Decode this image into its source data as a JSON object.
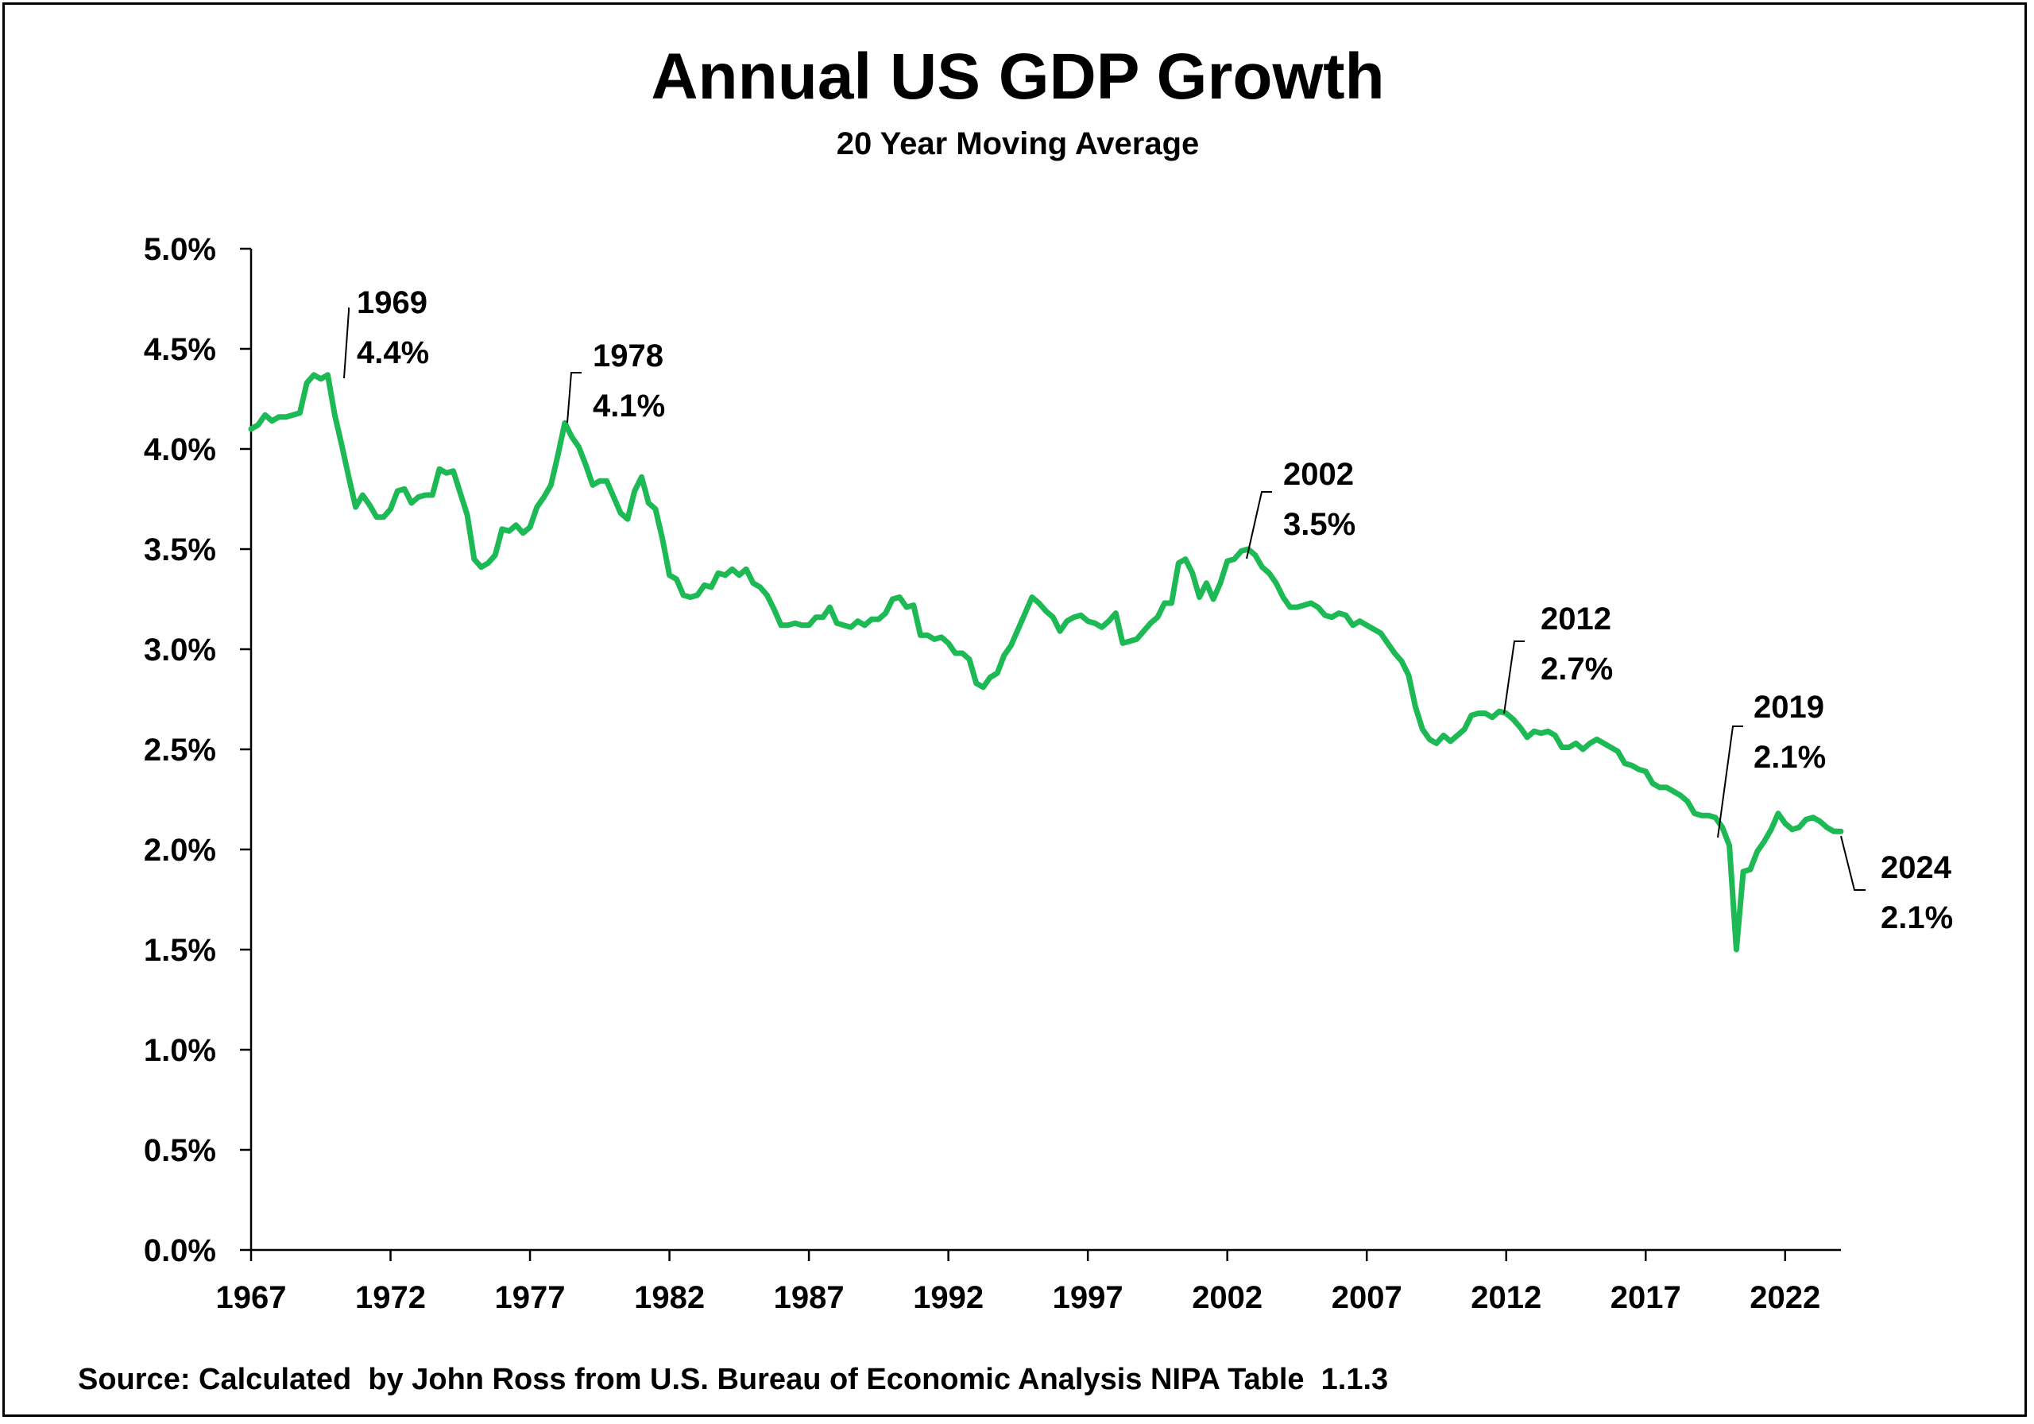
{
  "chart_data": {
    "type": "line",
    "title": "Annual US GDP Growth",
    "subtitle": "20 Year Moving Average",
    "xlabel": "",
    "ylabel": "",
    "x_tick_labels": [
      "1967",
      "1972",
      "1977",
      "1982",
      "1987",
      "1992",
      "1997",
      "2002",
      "2007",
      "2012",
      "2017",
      "2022"
    ],
    "y_tick_labels": [
      "0.0%",
      "0.5%",
      "1.0%",
      "1.5%",
      "2.0%",
      "2.5%",
      "3.0%",
      "3.5%",
      "4.0%",
      "4.5%",
      "5.0%"
    ],
    "xlim": [
      1967,
      2024
    ],
    "ylim": [
      0,
      5
    ],
    "grid": false,
    "legend": "none",
    "line_color": "#1db954",
    "series": [
      {
        "x": [
          1967.0,
          1967.25,
          1967.5,
          1967.75,
          1968.0,
          1968.25,
          1968.5,
          1968.75,
          1969.0,
          1969.25,
          1969.5,
          1969.75,
          1970.0,
          1970.25,
          1970.5,
          1970.75,
          1971.0,
          1971.25,
          1971.5,
          1971.75,
          1972.0,
          1972.25,
          1972.5,
          1972.75,
          1973.0,
          1973.25,
          1973.5,
          1973.75,
          1974.0,
          1974.25,
          1974.5,
          1974.75,
          1975.0,
          1975.25,
          1975.5,
          1975.75,
          1976.0,
          1976.25,
          1976.5,
          1976.75,
          1977.0,
          1977.25,
          1977.5,
          1977.75,
          1978.0,
          1978.25,
          1978.5,
          1978.75,
          1979.0,
          1979.25,
          1979.5,
          1979.75,
          1980.0,
          1980.25,
          1980.5,
          1980.75,
          1981.0,
          1981.25,
          1981.5,
          1981.75,
          1982.0,
          1982.25,
          1982.5,
          1982.75,
          1983.0,
          1983.25,
          1983.5,
          1983.75,
          1984.0,
          1984.25,
          1984.5,
          1984.75,
          1985.0,
          1985.25,
          1985.5,
          1985.75,
          1986.0,
          1986.25,
          1986.5,
          1986.75,
          1987.0,
          1987.25,
          1987.5,
          1987.75,
          1988.0,
          1988.25,
          1988.5,
          1988.75,
          1989.0,
          1989.25,
          1989.5,
          1989.75,
          1990.0,
          1990.25,
          1990.5,
          1990.75,
          1991.0,
          1991.25,
          1991.5,
          1991.75,
          1992.0,
          1992.25,
          1992.5,
          1992.75,
          1993.0,
          1993.25,
          1993.5,
          1993.75,
          1994.0,
          1994.25,
          1994.5,
          1994.75,
          1995.0,
          1995.25,
          1995.5,
          1995.75,
          1996.0,
          1996.25,
          1996.5,
          1996.75,
          1997.0,
          1997.25,
          1997.5,
          1997.75,
          1998.0,
          1998.25,
          1998.5,
          1998.75,
          1999.0,
          1999.25,
          1999.5,
          1999.75,
          2000.0,
          2000.25,
          2000.5,
          2000.75,
          2001.0,
          2001.25,
          2001.5,
          2001.75,
          2002.0,
          2002.25,
          2002.5,
          2002.75,
          2003.0,
          2003.25,
          2003.5,
          2003.75,
          2004.0,
          2004.25,
          2004.5,
          2004.75,
          2005.0,
          2005.25,
          2005.5,
          2005.75,
          2006.0,
          2006.25,
          2006.5,
          2006.75,
          2007.0,
          2007.25,
          2007.5,
          2007.75,
          2008.0,
          2008.25,
          2008.5,
          2008.75,
          2009.0,
          2009.25,
          2009.5,
          2009.75,
          2010.0,
          2010.25,
          2010.5,
          2010.75,
          2011.0,
          2011.25,
          2011.5,
          2011.75,
          2012.0,
          2012.25,
          2012.5,
          2012.75,
          2013.0,
          2013.25,
          2013.5,
          2013.75,
          2014.0,
          2014.25,
          2014.5,
          2014.75,
          2015.0,
          2015.25,
          2015.5,
          2015.75,
          2016.0,
          2016.25,
          2016.5,
          2016.75,
          2017.0,
          2017.25,
          2017.5,
          2017.75,
          2018.0,
          2018.25,
          2018.5,
          2018.75,
          2019.0,
          2019.25,
          2019.5,
          2019.75,
          2020.0,
          2020.25,
          2020.5,
          2020.75,
          2021.0,
          2021.25,
          2021.5,
          2021.75,
          2022.0,
          2022.25,
          2022.5,
          2022.75,
          2023.0,
          2023.25,
          2023.5,
          2023.75,
          2024.0
        ],
        "y": [
          4.1,
          4.12,
          4.17,
          4.14,
          4.16,
          4.16,
          4.17,
          4.18,
          4.33,
          4.37,
          4.35,
          4.37,
          4.17,
          4.02,
          3.86,
          3.71,
          3.77,
          3.72,
          3.66,
          3.66,
          3.7,
          3.79,
          3.8,
          3.73,
          3.76,
          3.77,
          3.77,
          3.9,
          3.88,
          3.89,
          3.78,
          3.67,
          3.45,
          3.41,
          3.43,
          3.47,
          3.6,
          3.59,
          3.62,
          3.58,
          3.61,
          3.71,
          3.76,
          3.82,
          3.97,
          4.13,
          4.06,
          4.01,
          3.92,
          3.82,
          3.84,
          3.84,
          3.76,
          3.68,
          3.65,
          3.79,
          3.86,
          3.73,
          3.7,
          3.55,
          3.37,
          3.35,
          3.27,
          3.26,
          3.27,
          3.32,
          3.31,
          3.38,
          3.37,
          3.4,
          3.37,
          3.4,
          3.33,
          3.31,
          3.27,
          3.2,
          3.12,
          3.12,
          3.13,
          3.12,
          3.12,
          3.16,
          3.16,
          3.21,
          3.13,
          3.12,
          3.11,
          3.14,
          3.12,
          3.15,
          3.15,
          3.18,
          3.25,
          3.26,
          3.21,
          3.22,
          3.07,
          3.07,
          3.05,
          3.06,
          3.03,
          2.98,
          2.98,
          2.95,
          2.83,
          2.81,
          2.86,
          2.88,
          2.97,
          3.02,
          3.1,
          3.18,
          3.26,
          3.23,
          3.19,
          3.16,
          3.09,
          3.14,
          3.16,
          3.17,
          3.14,
          3.13,
          3.11,
          3.14,
          3.18,
          3.03,
          3.04,
          3.05,
          3.09,
          3.13,
          3.16,
          3.23,
          3.23,
          3.43,
          3.45,
          3.38,
          3.26,
          3.33,
          3.25,
          3.33,
          3.44,
          3.45,
          3.49,
          3.5,
          3.47,
          3.41,
          3.38,
          3.33,
          3.26,
          3.21,
          3.21,
          3.22,
          3.23,
          3.21,
          3.17,
          3.16,
          3.18,
          3.17,
          3.12,
          3.14,
          3.12,
          3.1,
          3.08,
          3.03,
          2.98,
          2.94,
          2.87,
          2.71,
          2.6,
          2.55,
          2.53,
          2.57,
          2.54,
          2.57,
          2.6,
          2.67,
          2.68,
          2.68,
          2.66,
          2.69,
          2.68,
          2.65,
          2.61,
          2.56,
          2.59,
          2.58,
          2.59,
          2.57,
          2.51,
          2.51,
          2.53,
          2.5,
          2.53,
          2.55,
          2.53,
          2.51,
          2.49,
          2.43,
          2.42,
          2.4,
          2.39,
          2.33,
          2.31,
          2.31,
          2.29,
          2.27,
          2.24,
          2.18,
          2.17,
          2.17,
          2.16,
          2.11,
          2.02,
          1.5,
          1.89,
          1.9,
          1.99,
          2.04,
          2.1,
          2.18,
          2.13,
          2.1,
          2.11,
          2.15,
          2.16,
          2.14,
          2.11,
          2.09,
          2.09
        ]
      }
    ],
    "annotations": [
      {
        "year": "1969",
        "value": "4.4%"
      },
      {
        "year": "1978",
        "value": "4.1%"
      },
      {
        "year": "2002",
        "value": "3.5%"
      },
      {
        "year": "2012",
        "value": "2.7%"
      },
      {
        "year": "2019",
        "value": "2.1%"
      },
      {
        "year": "2024",
        "value": "2.1%"
      }
    ],
    "source_note": "Source: Calculated  by John Ross from U.S. Bureau of Economic Analysis NIPA Table  1.1.3"
  }
}
